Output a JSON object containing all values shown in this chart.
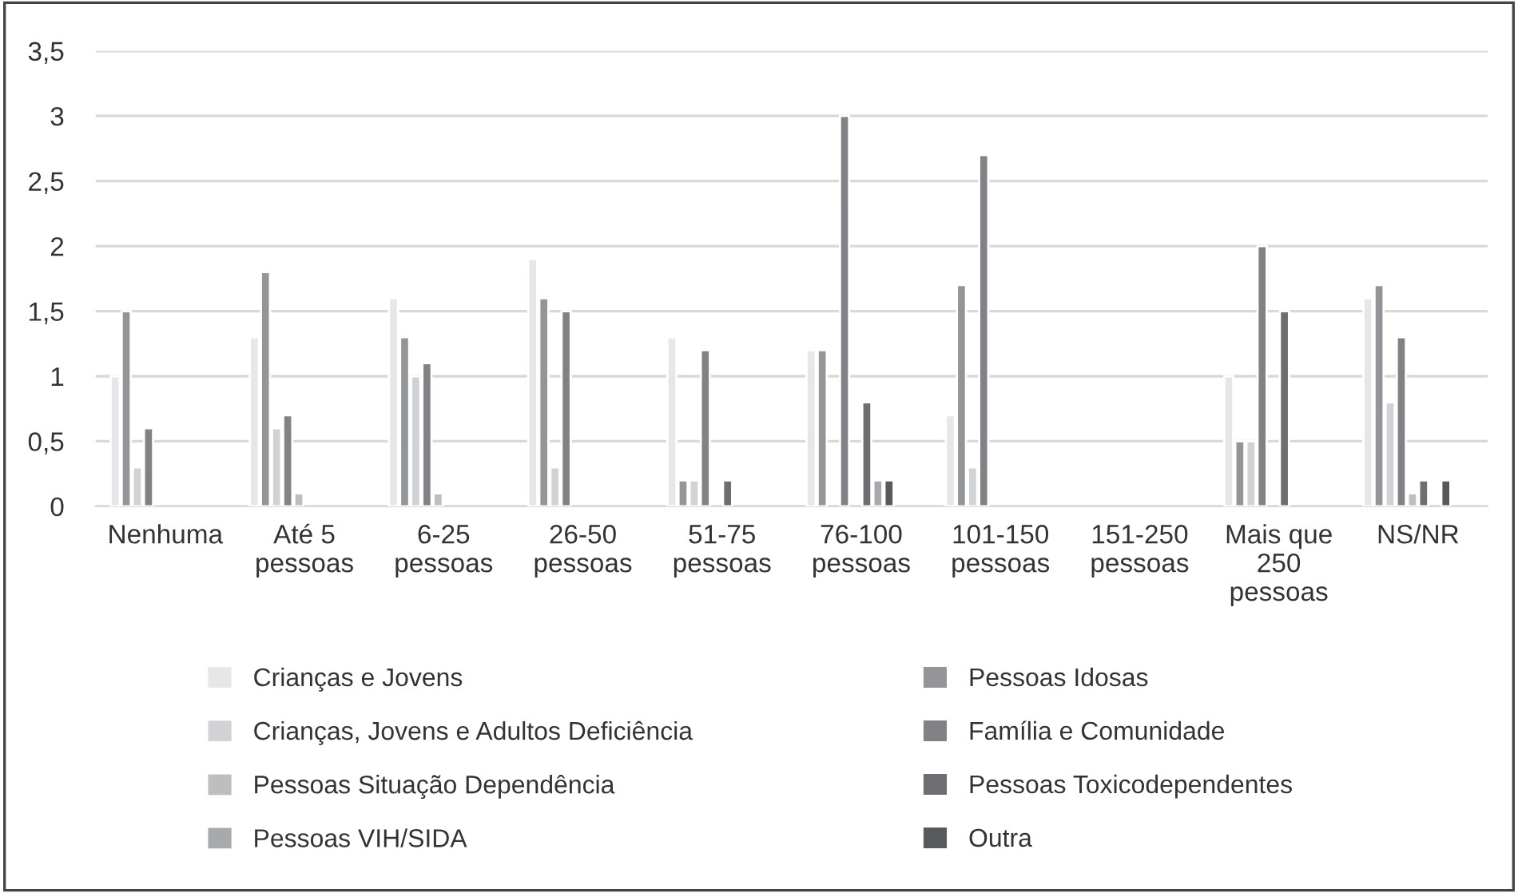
{
  "chart_data": {
    "type": "bar",
    "categories": [
      "Nenhuma",
      "Até 5 pessoas",
      "6-25 pessoas",
      "26-50 pessoas",
      "51-75 pessoas",
      "76-100 pessoas",
      "101-150 pessoas",
      "151-250 pessoas",
      "Mais que 250 pessoas",
      "NS/NR"
    ],
    "series": [
      {
        "name": "Crianças e Jovens",
        "color": "#e6e7e8",
        "values": [
          1.0,
          1.3,
          1.6,
          1.9,
          1.3,
          1.2,
          0.7,
          null,
          1.0,
          1.6
        ]
      },
      {
        "name": "Pessoas Idosas",
        "color": "#939598",
        "values": [
          1.5,
          1.8,
          1.3,
          1.6,
          0.2,
          1.2,
          1.7,
          null,
          0.5,
          1.7
        ]
      },
      {
        "name": "Crianças, Jovens e Adultos Deficiência",
        "color": "#d1d2d4",
        "values": [
          0.3,
          0.6,
          1.0,
          0.3,
          0.2,
          null,
          0.3,
          null,
          0.5,
          0.8
        ]
      },
      {
        "name": "Família e Comunidade",
        "color": "#808285",
        "values": [
          0.6,
          0.7,
          1.1,
          1.5,
          1.2,
          3.0,
          2.7,
          null,
          2.0,
          1.3
        ]
      },
      {
        "name": "Pessoas Situação Dependência",
        "color": "#bcbec0",
        "values": [
          null,
          0.1,
          0.1,
          null,
          null,
          null,
          null,
          null,
          null,
          0.1
        ]
      },
      {
        "name": "Pessoas Toxicodependentes",
        "color": "#6d6e71",
        "values": [
          null,
          null,
          null,
          null,
          0.2,
          0.8,
          null,
          null,
          1.5,
          0.2
        ]
      },
      {
        "name": "Pessoas VIH/SIDA",
        "color": "#a7a9ac",
        "values": [
          null,
          null,
          null,
          null,
          null,
          0.2,
          null,
          null,
          null,
          null
        ]
      },
      {
        "name": "Outra",
        "color": "#58595b",
        "values": [
          null,
          null,
          null,
          null,
          null,
          0.2,
          null,
          null,
          null,
          0.2
        ]
      }
    ],
    "ylim": [
      0,
      3.5
    ],
    "yticks": [
      {
        "value": 0,
        "label": "0"
      },
      {
        "value": 0.5,
        "label": "0,5"
      },
      {
        "value": 1,
        "label": "1"
      },
      {
        "value": 1.5,
        "label": "1,5"
      },
      {
        "value": 2,
        "label": "2"
      },
      {
        "value": 2.5,
        "label": "2,5"
      },
      {
        "value": 3,
        "label": "3"
      },
      {
        "value": 3.5,
        "label": "3,5"
      }
    ],
    "grid": "y",
    "legend": "bottom"
  }
}
